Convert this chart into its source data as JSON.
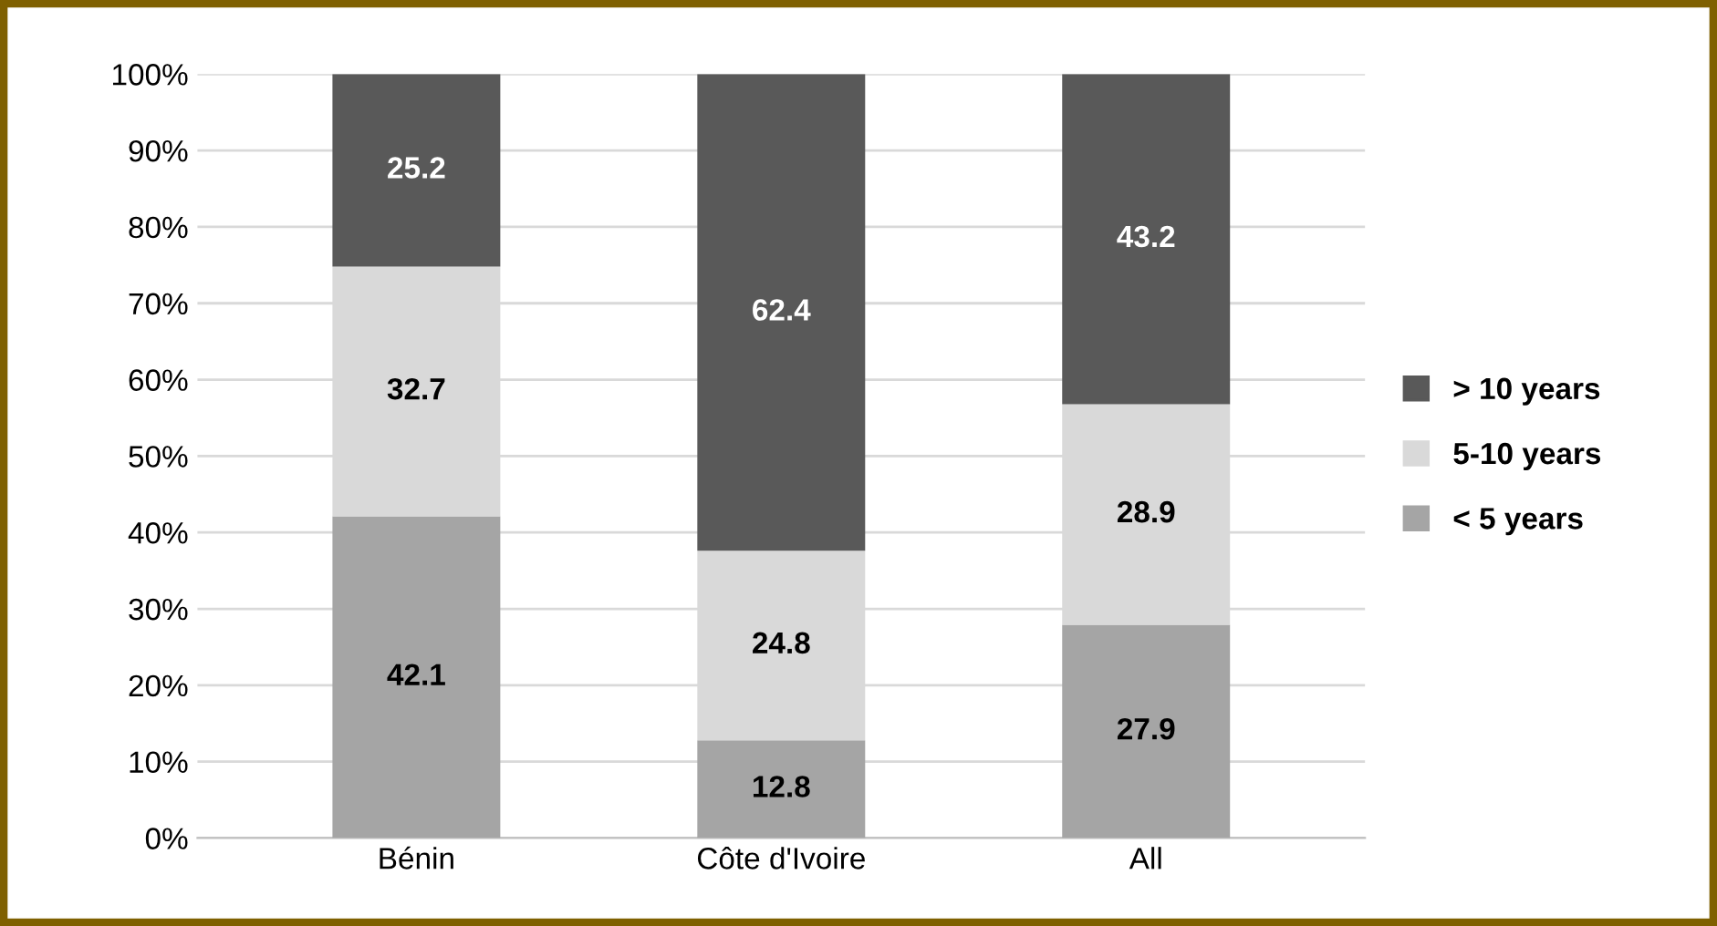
{
  "chart_data": {
    "type": "bar",
    "stacked": true,
    "categories": [
      "Bénin",
      "Côte d'Ivoire",
      "All"
    ],
    "series": [
      {
        "name": "< 5 years",
        "color": "#a5a5a5",
        "values": [
          42.1,
          12.8,
          27.9
        ]
      },
      {
        "name": "5-10 years",
        "color": "#d9d9d9",
        "values": [
          32.7,
          24.8,
          28.9
        ]
      },
      {
        "name": "> 10 years",
        "color": "#595959",
        "values": [
          25.2,
          62.4,
          43.2
        ]
      }
    ],
    "ylim": [
      0,
      100
    ],
    "yticks": [
      {
        "value": 0,
        "label": "0%"
      },
      {
        "value": 10,
        "label": "10%"
      },
      {
        "value": 20,
        "label": "20%"
      },
      {
        "value": 30,
        "label": "30%"
      },
      {
        "value": 40,
        "label": "40%"
      },
      {
        "value": 50,
        "label": "50%"
      },
      {
        "value": 60,
        "label": "60%"
      },
      {
        "value": 70,
        "label": "70%"
      },
      {
        "value": 80,
        "label": "80%"
      },
      {
        "value": 90,
        "label": "90%"
      },
      {
        "value": 100,
        "label": "100%"
      }
    ],
    "grid": "y",
    "legend": "right",
    "data_labels": true
  }
}
